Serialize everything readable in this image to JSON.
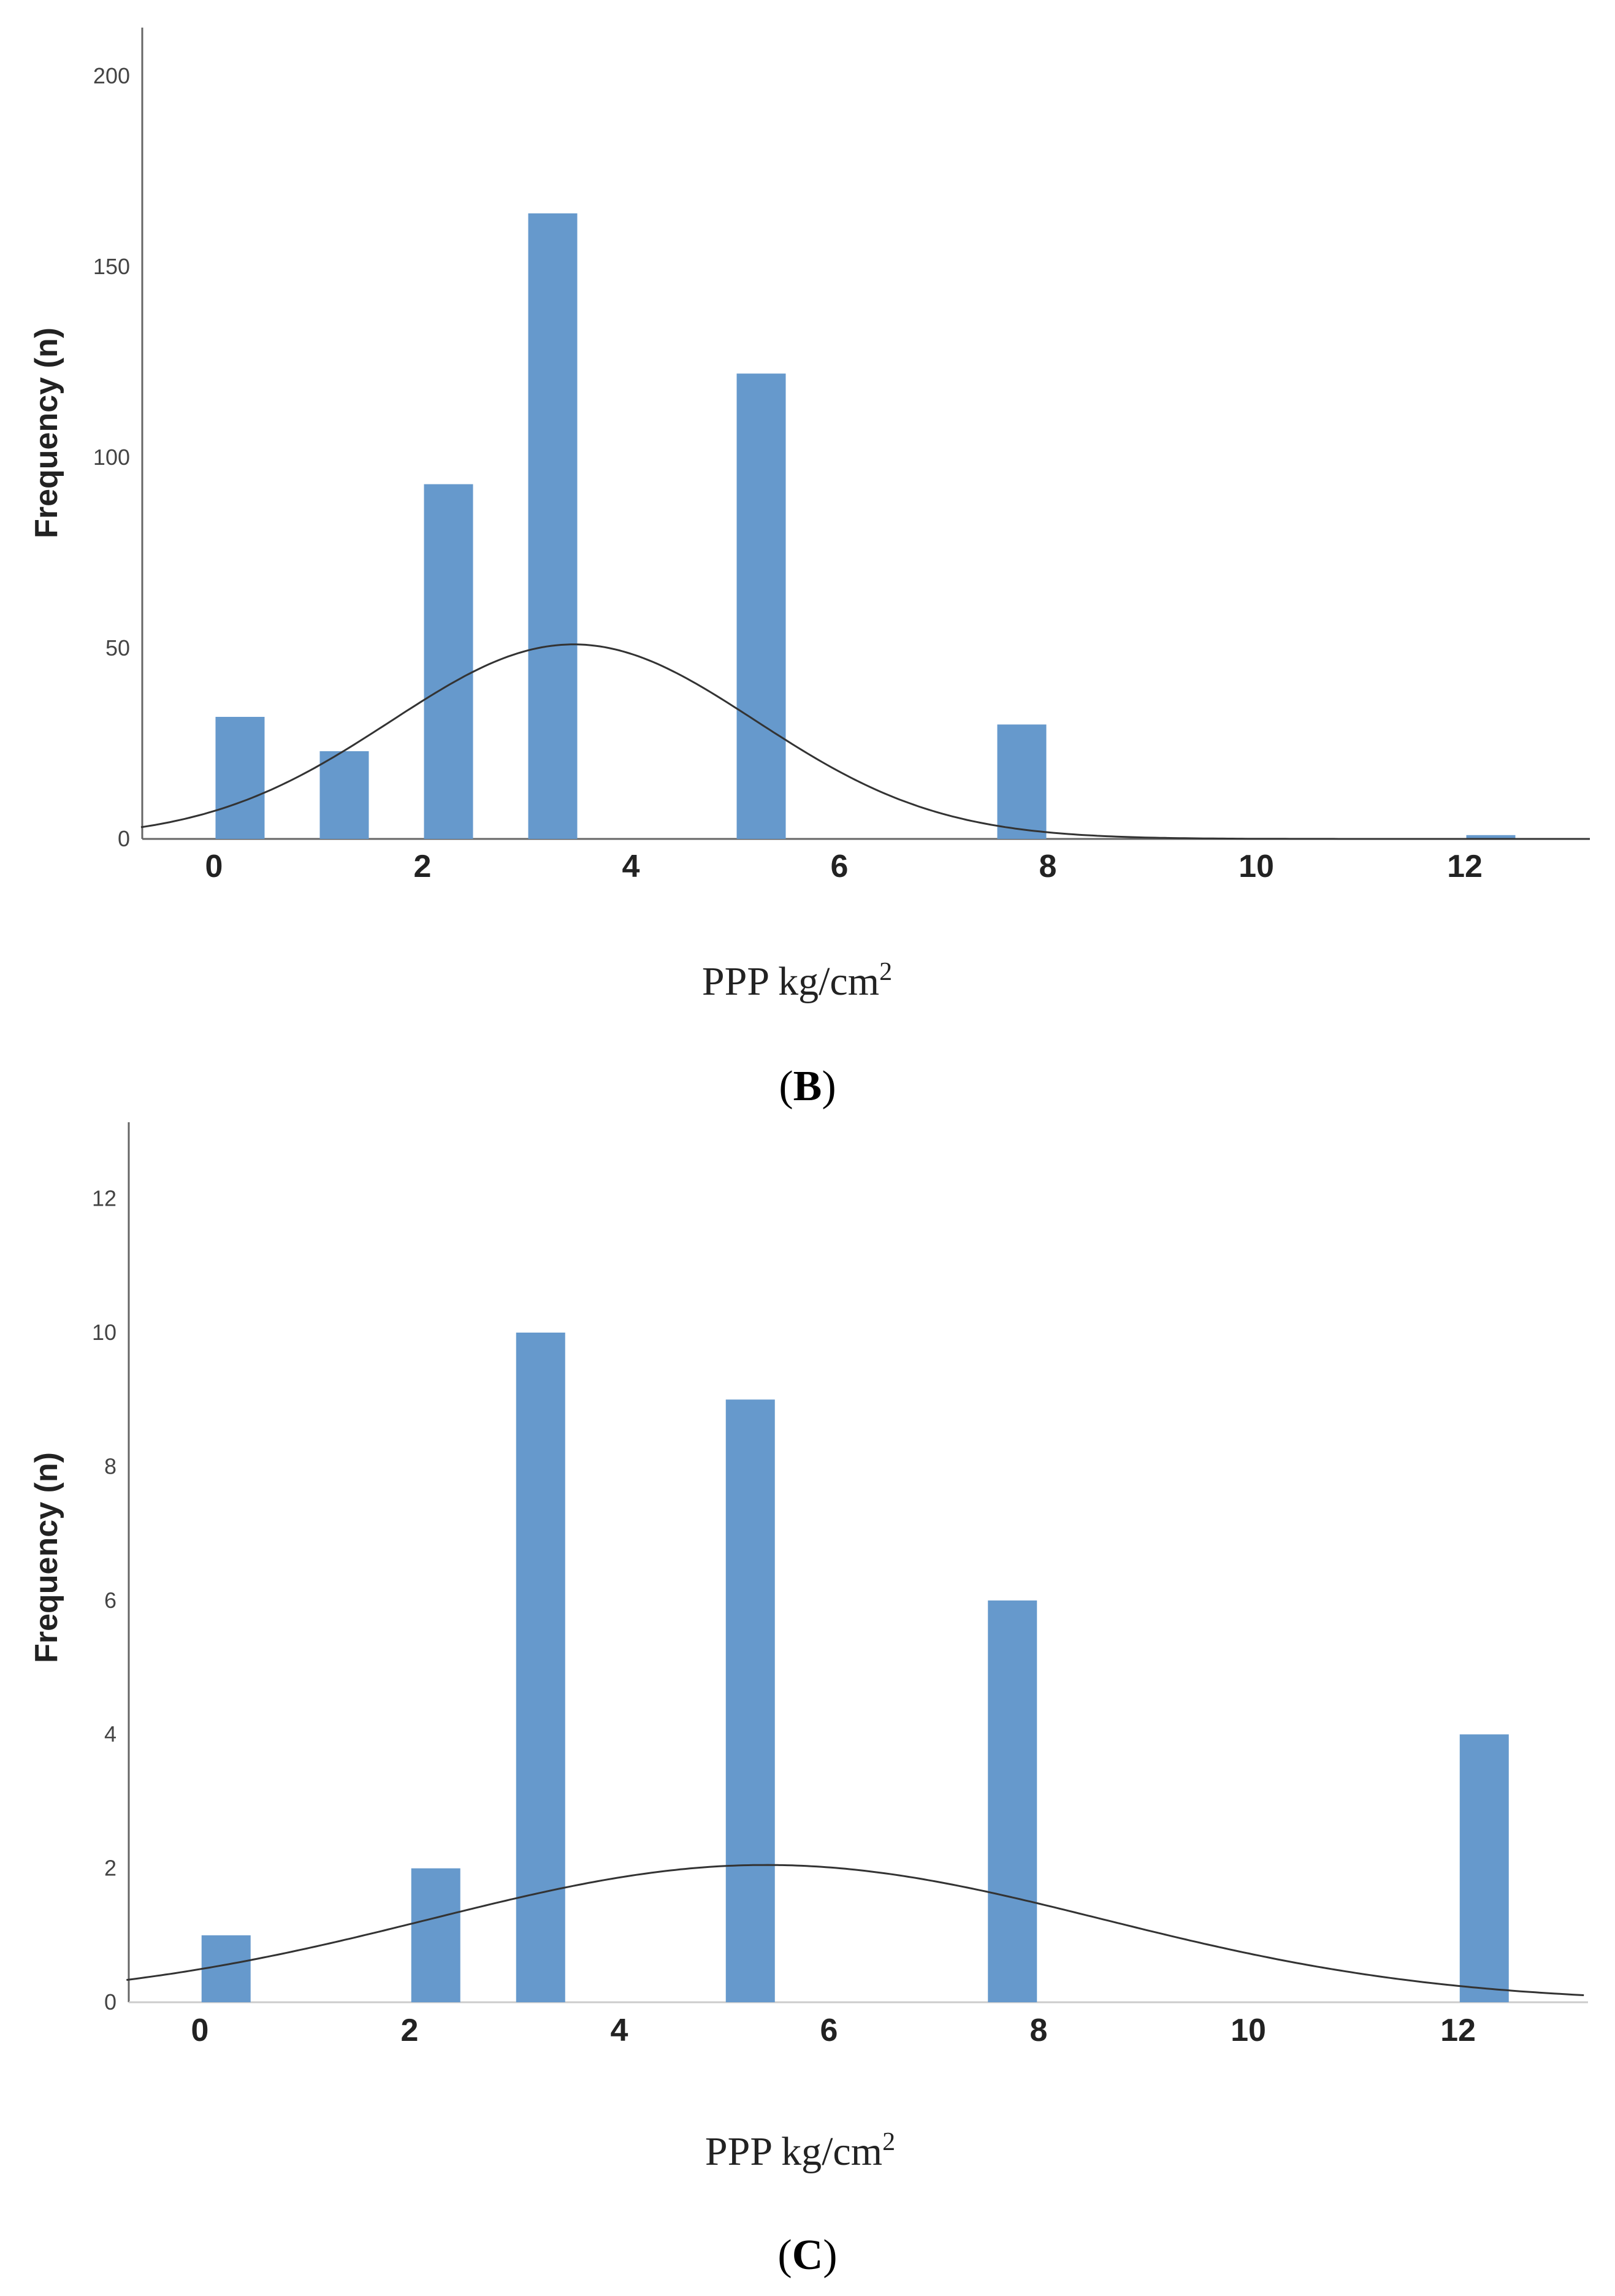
{
  "chart_data": [
    {
      "type": "bar",
      "panel": "B",
      "title": "",
      "xlabel_main": "PPP kg/cm",
      "xlabel_sup": "2",
      "ylabel": "Frequency (n)",
      "xlim": [
        -0.7,
        13.2
      ],
      "ylim": [
        0,
        210
      ],
      "x_ticks": [
        "0",
        "2",
        "4",
        "6",
        "8",
        "10",
        "12"
      ],
      "y_ticks": [
        "0",
        "50",
        "100",
        "150",
        "200"
      ],
      "bar_color": "#6699cc",
      "bins": [
        {
          "x": 0.25,
          "value": 32
        },
        {
          "x": 1.25,
          "value": 23
        },
        {
          "x": 2.25,
          "value": 93
        },
        {
          "x": 3.25,
          "value": 164
        },
        {
          "x": 5.25,
          "value": 122
        },
        {
          "x": 7.75,
          "value": 30
        },
        {
          "x": 12.25,
          "value": 1
        }
      ],
      "normal_curve": {
        "mean": 3.45,
        "sd": 1.75,
        "peak": 51
      }
    },
    {
      "type": "bar",
      "panel": "C",
      "title": "",
      "xlabel_main": "PPP kg/cm",
      "xlabel_sup": "2",
      "ylabel": "Frequency (n)",
      "xlim": [
        -0.7,
        13.2
      ],
      "ylim": [
        0,
        13
      ],
      "x_ticks": [
        "0",
        "2",
        "4",
        "6",
        "8",
        "10",
        "12"
      ],
      "y_ticks": [
        "0",
        "2",
        "4",
        "6",
        "8",
        "10",
        "12"
      ],
      "bar_color": "#6699cc",
      "bins": [
        {
          "x": 0.25,
          "value": 1
        },
        {
          "x": 2.25,
          "value": 2
        },
        {
          "x": 3.25,
          "value": 10
        },
        {
          "x": 5.25,
          "value": 9
        },
        {
          "x": 7.75,
          "value": 6
        },
        {
          "x": 12.25,
          "value": 4
        }
      ],
      "normal_curve": {
        "mean": 5.4,
        "sd": 3.2,
        "peak": 2.05
      }
    }
  ]
}
